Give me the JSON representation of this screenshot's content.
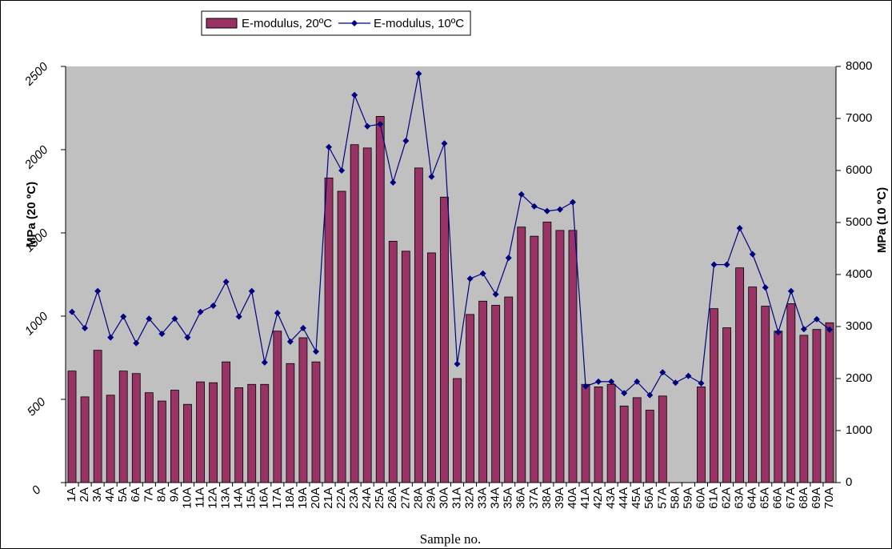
{
  "chart_data": {
    "type": "bar-line",
    "x_label": "Sample no.",
    "y_label": "MPa (20 ºC)",
    "y2_label": "MPa (10 ºC)",
    "legend_position": "top",
    "background": "#c0c0c0",
    "categories": [
      "1A",
      "2A",
      "3A",
      "4A",
      "5A",
      "6A",
      "7A",
      "8A",
      "9A",
      "10A",
      "11A",
      "12A",
      "13A",
      "14A",
      "15A",
      "16A",
      "17A",
      "18A",
      "19A",
      "20A",
      "21A",
      "22A",
      "23A",
      "24A",
      "25A",
      "26A",
      "27A",
      "28A",
      "29A",
      "30A",
      "31A",
      "32A",
      "33A",
      "34A",
      "35A",
      "36A",
      "37A",
      "38A",
      "39A",
      "40A",
      "41A",
      "42A",
      "43A",
      "44A",
      "45A",
      "56A",
      "57A",
      "58A",
      "59A",
      "60A",
      "61A",
      "62A",
      "63A",
      "64A",
      "65A",
      "66A",
      "67A",
      "68A",
      "69A",
      "70A"
    ],
    "ylim": [
      0,
      2500
    ],
    "yticks": [
      0,
      500,
      1000,
      1500,
      2000,
      2500
    ],
    "y2lim": [
      0,
      8000
    ],
    "y2ticks": [
      0,
      1000,
      2000,
      3000,
      4000,
      5000,
      6000,
      7000,
      8000
    ],
    "series": [
      {
        "name": "E-modulus, 20ºC",
        "type": "bar",
        "color": "#993366",
        "values": [
          670,
          515,
          795,
          525,
          670,
          655,
          540,
          490,
          555,
          470,
          605,
          600,
          725,
          570,
          590,
          590,
          910,
          715,
          870,
          725,
          1830,
          1750,
          2030,
          2010,
          2200,
          1450,
          1390,
          1890,
          1380,
          1715,
          625,
          1010,
          1090,
          1065,
          1115,
          1535,
          1480,
          1565,
          1515,
          1515,
          590,
          575,
          590,
          460,
          510,
          435,
          520,
          null,
          null,
          575,
          1045,
          930,
          1290,
          1175,
          1060,
          910,
          1075,
          885,
          920,
          960
        ]
      },
      {
        "name": "E-modulus, 10ºC",
        "type": "line",
        "axis": "y2",
        "color": "#000080",
        "values": [
          3280,
          2970,
          3680,
          2790,
          3190,
          2680,
          3150,
          2860,
          3150,
          2790,
          3280,
          3400,
          3860,
          3190,
          3680,
          2310,
          3260,
          2710,
          2970,
          2520,
          6450,
          6000,
          7450,
          6850,
          6890,
          5770,
          6570,
          7860,
          5880,
          6520,
          2280,
          3920,
          4020,
          3620,
          4320,
          5540,
          5310,
          5220,
          5250,
          5390,
          1850,
          1940,
          1940,
          1720,
          1940,
          1680,
          2120,
          1920,
          2050,
          1910,
          4190,
          4190,
          4890,
          4390,
          3750,
          2890,
          3680,
          2950,
          3140,
          2940
        ]
      }
    ]
  }
}
